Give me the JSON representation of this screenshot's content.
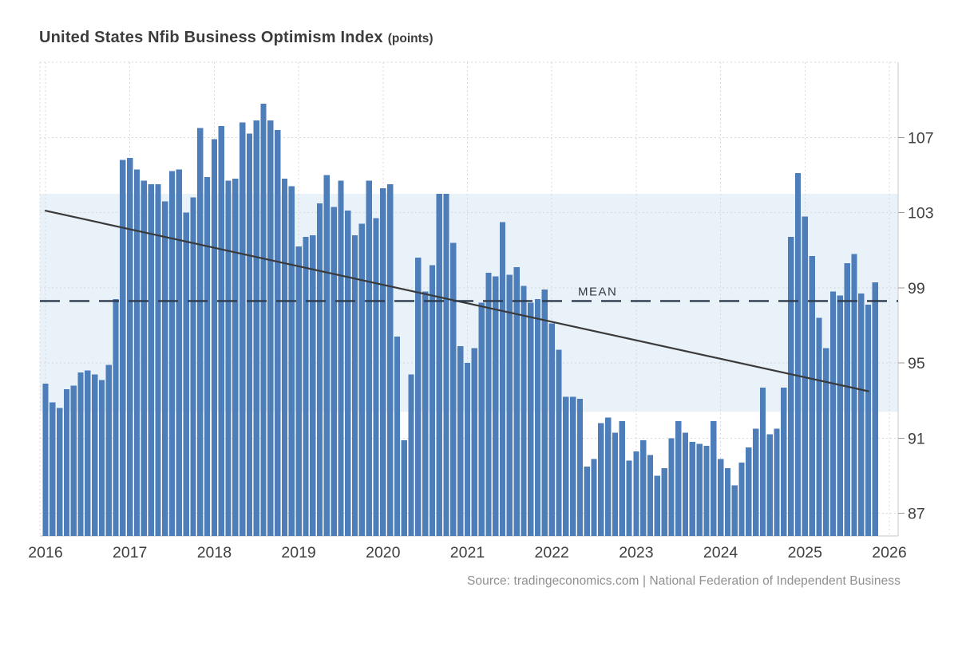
{
  "header": {
    "title": "United States Nfib Business Optimism Index",
    "unit_suffix": "(points)"
  },
  "footer": {
    "source": "Source: tradingeconomics.com | National Federation of Independent Business"
  },
  "chart_data": {
    "type": "bar",
    "title": "United States Nfib Business Optimism Index",
    "unit": "points",
    "xlabel": "",
    "ylabel": "points",
    "grid": true,
    "legend_position": "none",
    "start_month": "2016-01",
    "end_month": "2025-11",
    "values": [
      93.9,
      92.9,
      92.6,
      93.6,
      93.8,
      94.5,
      94.6,
      94.4,
      94.1,
      94.9,
      98.4,
      105.8,
      105.9,
      105.3,
      104.7,
      104.5,
      104.5,
      103.6,
      105.2,
      105.3,
      103.0,
      103.8,
      107.5,
      104.9,
      106.9,
      107.6,
      104.7,
      104.8,
      107.8,
      107.2,
      107.9,
      108.8,
      107.9,
      107.4,
      104.8,
      104.4,
      101.2,
      101.7,
      101.8,
      103.5,
      105.0,
      103.3,
      104.7,
      103.1,
      101.8,
      102.4,
      104.7,
      102.7,
      104.3,
      104.5,
      96.4,
      90.9,
      94.4,
      100.6,
      98.8,
      100.2,
      104.0,
      104.0,
      101.4,
      95.9,
      95.0,
      95.8,
      98.2,
      99.8,
      99.6,
      102.5,
      99.7,
      100.1,
      99.1,
      98.2,
      98.4,
      98.9,
      97.1,
      95.7,
      93.2,
      93.2,
      93.1,
      89.5,
      89.9,
      91.8,
      92.1,
      91.3,
      91.9,
      89.8,
      90.3,
      90.9,
      90.1,
      89.0,
      89.4,
      91.0,
      91.9,
      91.3,
      90.8,
      90.7,
      90.6,
      91.9,
      89.9,
      89.4,
      88.5,
      89.7,
      90.5,
      91.5,
      93.7,
      91.2,
      91.5,
      93.7,
      101.7,
      105.1,
      102.8,
      100.7,
      97.4,
      95.8,
      98.8,
      98.6,
      100.3,
      100.8,
      98.7,
      98.1,
      99.3
    ],
    "x_tick_years": [
      2016,
      2017,
      2018,
      2019,
      2020,
      2021,
      2022,
      2023,
      2024,
      2025,
      2026
    ],
    "y_ticks": [
      87,
      91,
      95,
      99,
      103,
      107
    ],
    "ylim": [
      85.8,
      111.0
    ],
    "mean_line": {
      "value": 98.3,
      "label": "MEAN"
    },
    "band": {
      "from": 92.4,
      "to": 104.0
    },
    "trend_line": {
      "start": {
        "month_index": 0,
        "value": 103.1
      },
      "end": {
        "month_index": 117,
        "value": 93.5
      }
    },
    "colors": {
      "bar": "#4d7eba",
      "band": "#e9f1f9",
      "grid": "#d9d9d9",
      "axis_line": "#c9c9c9",
      "mean_line": "#2c3c4d",
      "trend_line": "#3a3a3a",
      "tick_text": "#404040",
      "mean_text": "#333940"
    }
  }
}
